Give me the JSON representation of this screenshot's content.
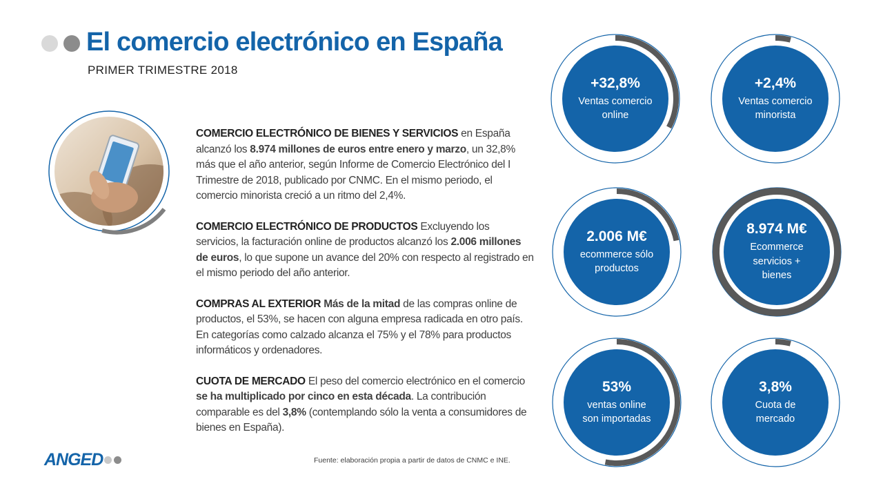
{
  "header": {
    "title": "El comercio electrónico en España",
    "subtitle": "PRIMER  TRIMESTRE  2018"
  },
  "colors": {
    "brand_blue": "#1464a9",
    "ring_gray": "#595959",
    "ring_blue": "#1464a9",
    "dot_light": "#d9d9d9",
    "dot_dark": "#8c8c8c"
  },
  "photo": {
    "icon": "hand-holding-smartphone-photo"
  },
  "paragraphs": [
    {
      "heading": "COMERCIO ELECTRÓNICO DE BIENES Y SERVICIOS",
      "t1": " en España alcanzó los ",
      "b1": "8.974 millones de euros entre enero y marzo",
      "t2": ", un 32,8% más que el año anterior,  según Informe de Comercio Electrónico del I Trimestre de 2018, publicado por CNMC. En el mismo periodo, el comercio minorista creció a un ritmo  del 2,4%."
    },
    {
      "heading": "COMERCIO ELECTRÓNICO DE PRODUCTOS",
      "t1": " Excluyendo los servicios, la facturación  online de productos alcanzó los ",
      "b1": "2.006 millones de euros",
      "t2": ", lo que supone un avance del 20% con respecto al registrado en el mismo periodo del año anterior."
    },
    {
      "heading": "COMPRAS AL EXTERIOR",
      "t1": " ",
      "b1": "Más de la mitad",
      "t2": " de las compras online de productos, el 53%,  se hacen con alguna empresa radicada en otro país.  En categorías como calzado alcanza el 75% y el 78% para productos informáticos y ordenadores."
    },
    {
      "heading": "CUOTA DE MERCADO",
      "t1": " El peso del comercio electrónico en el comercio ",
      "b1": "se ha multiplicado por cinco en esta década",
      "t2": ". La contribución comparable es del ",
      "b2": "3,8%",
      "t3": " (contemplando sólo la venta a consumidores de bienes en España)."
    }
  ],
  "source": "Fuente:  elaboración  propia  a partir de datos de CNMC e INE.",
  "logo": {
    "text": "ANGED"
  },
  "stats": [
    {
      "value": "+32,8%",
      "label": "Ventas comercio online",
      "progress": 0.328
    },
    {
      "value": "+2,4%",
      "label": "Ventas comercio minorista",
      "progress": 0.024
    },
    {
      "value": "2.006 M€",
      "label": "ecommerce sólo productos",
      "progress": 0.22
    },
    {
      "value": "8.974 M€",
      "label": "Ecommerce servicios + bienes",
      "progress": 1.0
    },
    {
      "value": "53%",
      "label": "ventas online son importadas",
      "progress": 0.53
    },
    {
      "value": "3,8%",
      "label": "Cuota de mercado",
      "progress": 0.038
    }
  ]
}
